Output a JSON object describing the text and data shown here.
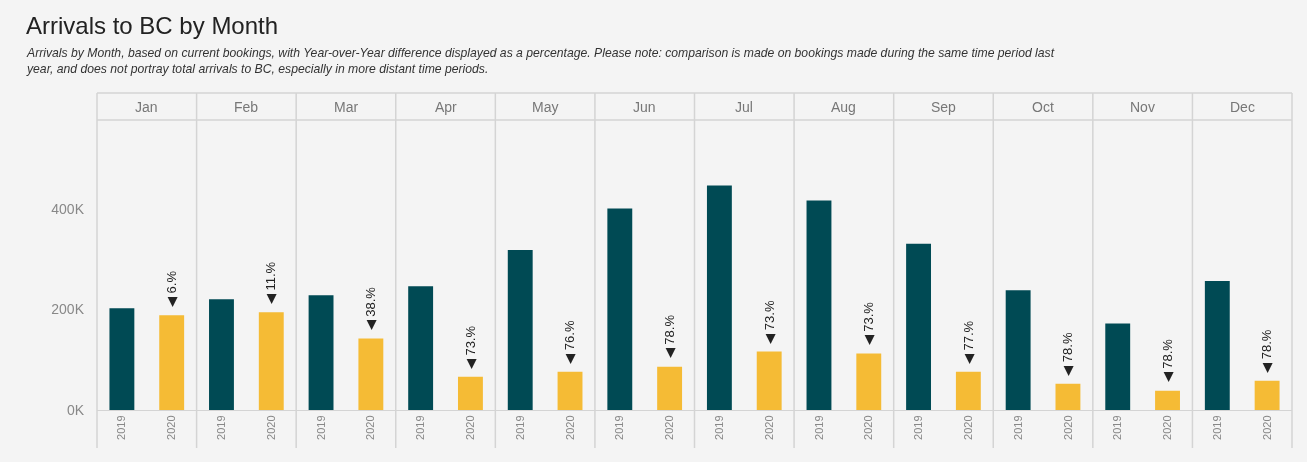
{
  "chart_data": [
    {
      "type": "other",
      "title": "Arrivals to BC by Month",
      "subtitle": "Arrivals by Month, based on current bookings, with Year-over-Year difference displayed as a percentage. Please note: comparison is made on bookings made during the same time period last year, and does not portray total arrivals to BC, especially in more distant time periods."
    },
    {
      "type": "bar",
      "title": "Jan",
      "categories": [
        "2019",
        "2020"
      ],
      "values": [
        202000,
        188000
      ],
      "colors": [
        "#004a54",
        "#f5bb35"
      ],
      "ylim": [
        0,
        576000
      ],
      "yticks": [
        {
          "value": 0,
          "label": "0K"
        },
        {
          "value": 200000,
          "label": "200K"
        },
        {
          "value": 400000,
          "label": "400K"
        }
      ],
      "annotations": [
        {
          "text": "◀ 6.%",
          "x": "2020",
          "y": 188000
        }
      ]
    },
    {
      "type": "bar",
      "title": "Feb",
      "categories": [
        "2019",
        "2020"
      ],
      "values": [
        220000,
        194000
      ],
      "colors": [
        "#004a54",
        "#f5bb35"
      ],
      "ylim": [
        0,
        576000
      ],
      "tick_labels": "x",
      "annotations": [
        {
          "text": "◀ 11.%",
          "x": "2020",
          "y": 194000
        }
      ]
    },
    {
      "type": "bar",
      "title": "Mar",
      "categories": [
        "2019",
        "2020"
      ],
      "values": [
        228000,
        142000
      ],
      "colors": [
        "#004a54",
        "#f5bb35"
      ],
      "ylim": [
        0,
        576000
      ],
      "tick_labels": "x",
      "annotations": [
        {
          "text": "◀ 38.%",
          "x": "2020",
          "y": 142000
        }
      ]
    },
    {
      "type": "bar",
      "title": "Apr",
      "categories": [
        "2019",
        "2020"
      ],
      "values": [
        246000,
        66000
      ],
      "colors": [
        "#004a54",
        "#f5bb35"
      ],
      "ylim": [
        0,
        576000
      ],
      "tick_labels": "x",
      "annotations": [
        {
          "text": "◀ 73.%",
          "x": "2020",
          "y": 66000
        }
      ]
    },
    {
      "type": "bar",
      "title": "May",
      "categories": [
        "2019",
        "2020"
      ],
      "values": [
        318000,
        76000
      ],
      "colors": [
        "#004a54",
        "#f5bb35"
      ],
      "ylim": [
        0,
        576000
      ],
      "tick_labels": "x",
      "annotations": [
        {
          "text": "◀ 76.%",
          "x": "2020",
          "y": 76000
        }
      ]
    },
    {
      "type": "bar",
      "title": "Jun",
      "categories": [
        "2019",
        "2020"
      ],
      "values": [
        400000,
        86000
      ],
      "colors": [
        "#004a54",
        "#f5bb35"
      ],
      "ylim": [
        0,
        576000
      ],
      "tick_labels": "x",
      "annotations": [
        {
          "text": "◀ 78.%",
          "x": "2020",
          "y": 86000
        }
      ]
    },
    {
      "type": "bar",
      "title": "Jul",
      "categories": [
        "2019",
        "2020"
      ],
      "values": [
        446000,
        116000
      ],
      "colors": [
        "#004a54",
        "#f5bb35"
      ],
      "ylim": [
        0,
        576000
      ],
      "tick_labels": "x",
      "annotations": [
        {
          "text": "◀ 73.%",
          "x": "2020",
          "y": 116000
        }
      ]
    },
    {
      "type": "bar",
      "title": "Aug",
      "categories": [
        "2019",
        "2020"
      ],
      "values": [
        416000,
        112000
      ],
      "colors": [
        "#004a54",
        "#f5bb35"
      ],
      "ylim": [
        0,
        576000
      ],
      "tick_labels": "x",
      "annotations": [
        {
          "text": "◀ 73.%",
          "x": "2020",
          "y": 112000
        }
      ]
    },
    {
      "type": "bar",
      "title": "Sep",
      "categories": [
        "2019",
        "2020"
      ],
      "values": [
        330000,
        76000
      ],
      "colors": [
        "#004a54",
        "#f5bb35"
      ],
      "ylim": [
        0,
        576000
      ],
      "tick_labels": "x",
      "annotations": [
        {
          "text": "◀ 77.%",
          "x": "2020",
          "y": 76000
        }
      ]
    },
    {
      "type": "bar",
      "title": "Oct",
      "categories": [
        "2019",
        "2020"
      ],
      "values": [
        238000,
        52000
      ],
      "colors": [
        "#004a54",
        "#f5bb35"
      ],
      "ylim": [
        0,
        576000
      ],
      "tick_labels": "x",
      "annotations": [
        {
          "text": "◀ 78.%",
          "x": "2020",
          "y": 52000
        }
      ]
    },
    {
      "type": "bar",
      "title": "Nov",
      "categories": [
        "2019",
        "2020"
      ],
      "values": [
        172000,
        38000
      ],
      "colors": [
        "#004a54",
        "#f5bb35"
      ],
      "ylim": [
        0,
        576000
      ],
      "tick_labels": "x",
      "annotations": [
        {
          "text": "◀ 78.%",
          "x": "2020",
          "y": 38000
        }
      ]
    },
    {
      "type": "bar",
      "title": "Dec",
      "categories": [
        "2019",
        "2020"
      ],
      "values": [
        256000,
        58000
      ],
      "colors": [
        "#004a54",
        "#f5bb35"
      ],
      "ylim": [
        0,
        576000
      ],
      "tick_labels": "x",
      "annotations": [
        {
          "text": "◀ 78.%",
          "x": "2020",
          "y": 58000
        }
      ]
    }
  ]
}
